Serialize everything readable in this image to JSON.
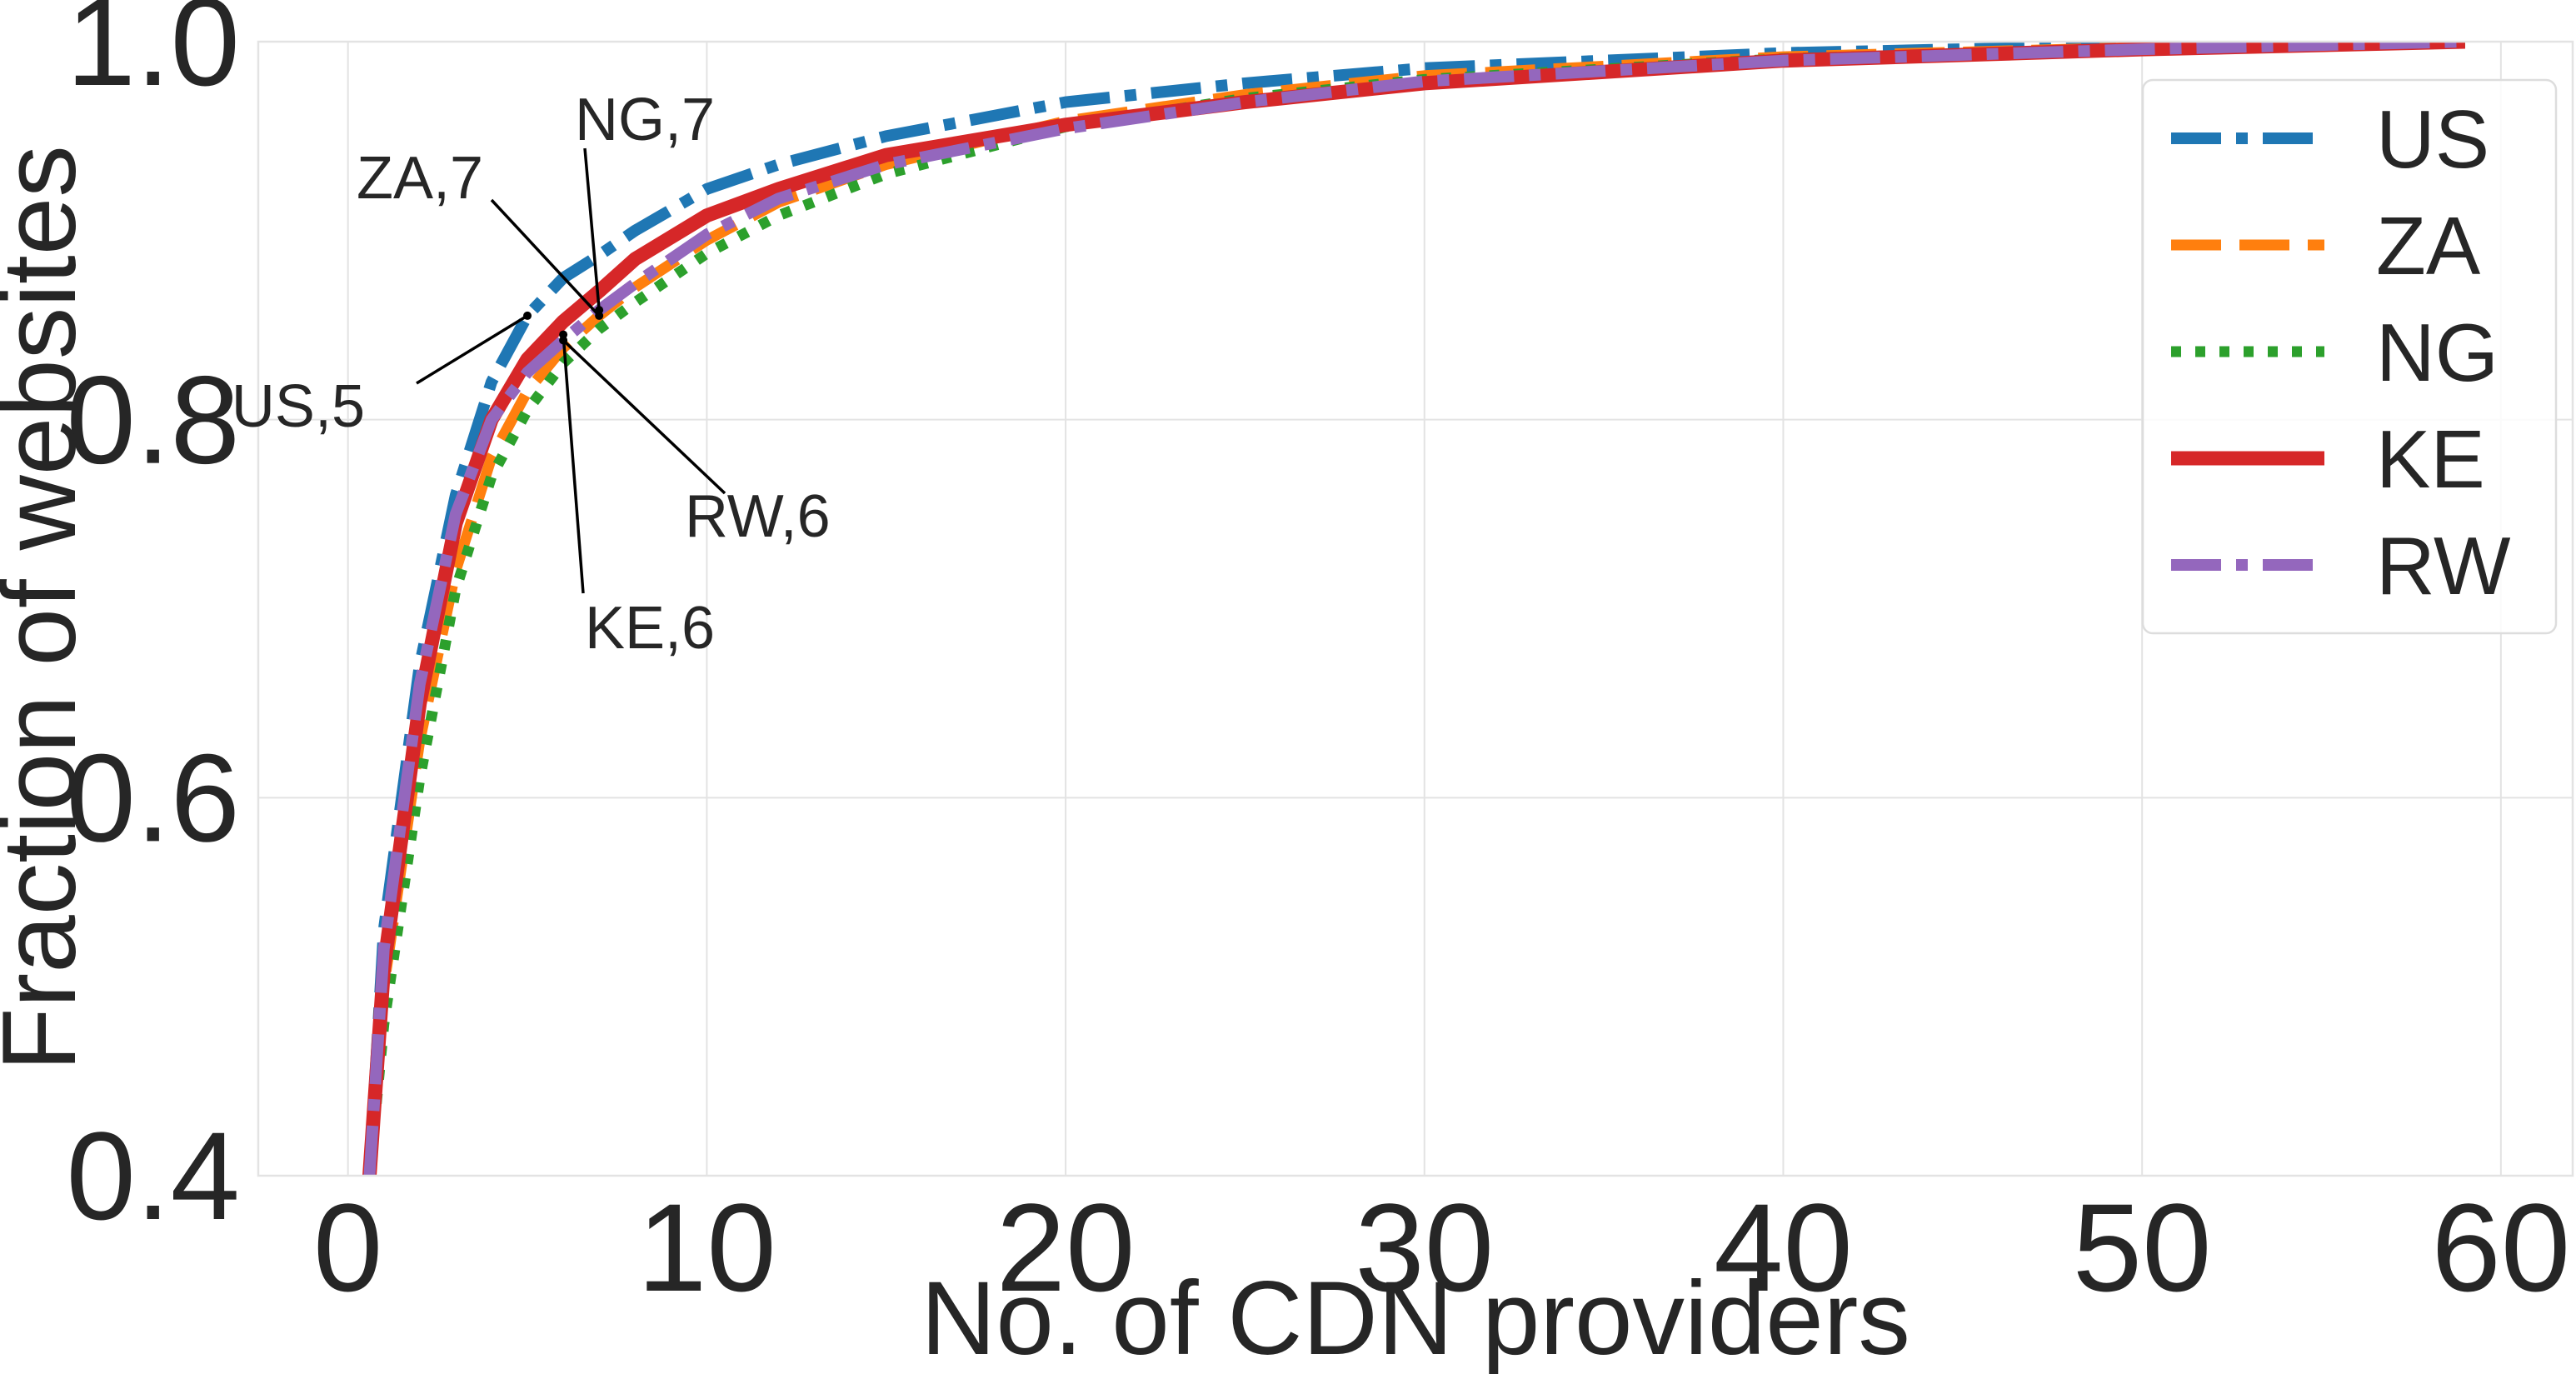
{
  "chart_data": {
    "type": "line",
    "title": "",
    "xlabel": "No. of CDN providers",
    "ylabel": "Fraction of websites",
    "xlim": [
      -2.5,
      62
    ],
    "ylim": [
      0.4,
      1.0
    ],
    "x_ticks": [
      0,
      10,
      20,
      30,
      40,
      50,
      60
    ],
    "y_ticks": [
      0.4,
      0.6,
      0.8,
      1.0
    ],
    "x_tick_labels": [
      "0",
      "10",
      "20",
      "30",
      "40",
      "50",
      "60"
    ],
    "y_tick_labels": [
      "0.4",
      "0.6",
      "0.8",
      "1.0"
    ],
    "grid": true,
    "legend_position": "top-right",
    "series": [
      {
        "name": "US",
        "color": "#1f77b4",
        "linestyle": "dashdot",
        "points": [
          [
            0.6,
            0.4
          ],
          [
            1,
            0.53
          ],
          [
            2,
            0.67
          ],
          [
            3,
            0.76
          ],
          [
            4,
            0.82
          ],
          [
            5,
            0.855
          ],
          [
            6,
            0.875
          ],
          [
            7,
            0.887
          ],
          [
            8,
            0.9
          ],
          [
            10,
            0.922
          ],
          [
            12,
            0.935
          ],
          [
            15,
            0.95
          ],
          [
            20,
            0.968
          ],
          [
            25,
            0.978
          ],
          [
            30,
            0.986
          ],
          [
            40,
            0.994
          ],
          [
            50,
            0.998
          ],
          [
            59,
            1.0
          ]
        ]
      },
      {
        "name": "ZA",
        "color": "#ff7f0e",
        "linestyle": "dashed",
        "points": [
          [
            0.6,
            0.4
          ],
          [
            1,
            0.5
          ],
          [
            2,
            0.63
          ],
          [
            3,
            0.72
          ],
          [
            4,
            0.78
          ],
          [
            5,
            0.815
          ],
          [
            6,
            0.838
          ],
          [
            7,
            0.855
          ],
          [
            8,
            0.87
          ],
          [
            10,
            0.895
          ],
          [
            12,
            0.915
          ],
          [
            15,
            0.935
          ],
          [
            20,
            0.958
          ],
          [
            25,
            0.972
          ],
          [
            30,
            0.982
          ],
          [
            40,
            0.992
          ],
          [
            50,
            0.997
          ],
          [
            59,
            1.0
          ]
        ]
      },
      {
        "name": "NG",
        "color": "#2ca02c",
        "linestyle": "dotted",
        "points": [
          [
            0.6,
            0.4
          ],
          [
            1,
            0.48
          ],
          [
            2,
            0.61
          ],
          [
            3,
            0.71
          ],
          [
            4,
            0.77
          ],
          [
            5,
            0.805
          ],
          [
            6,
            0.83
          ],
          [
            7,
            0.848
          ],
          [
            8,
            0.862
          ],
          [
            10,
            0.888
          ],
          [
            12,
            0.908
          ],
          [
            15,
            0.93
          ],
          [
            20,
            0.955
          ],
          [
            25,
            0.97
          ],
          [
            30,
            0.98
          ],
          [
            40,
            0.991
          ],
          [
            50,
            0.996
          ],
          [
            59,
            1.0
          ]
        ]
      },
      {
        "name": "KE",
        "color": "#d62728",
        "linestyle": "solid",
        "points": [
          [
            0.6,
            0.4
          ],
          [
            1,
            0.51
          ],
          [
            2,
            0.65
          ],
          [
            3,
            0.745
          ],
          [
            4,
            0.8
          ],
          [
            5,
            0.832
          ],
          [
            6,
            0.852
          ],
          [
            7,
            0.868
          ],
          [
            8,
            0.885
          ],
          [
            10,
            0.908
          ],
          [
            12,
            0.922
          ],
          [
            15,
            0.94
          ],
          [
            20,
            0.956
          ],
          [
            25,
            0.968
          ],
          [
            30,
            0.978
          ],
          [
            40,
            0.99
          ],
          [
            50,
            0.996
          ],
          [
            59,
            1.0
          ]
        ]
      },
      {
        "name": "RW",
        "color": "#9467bd",
        "linestyle": "dashdot",
        "points": [
          [
            0.6,
            0.4
          ],
          [
            1,
            0.52
          ],
          [
            2,
            0.66
          ],
          [
            3,
            0.75
          ],
          [
            4,
            0.8
          ],
          [
            5,
            0.825
          ],
          [
            6,
            0.842
          ],
          [
            7,
            0.858
          ],
          [
            8,
            0.872
          ],
          [
            10,
            0.898
          ],
          [
            12,
            0.917
          ],
          [
            15,
            0.935
          ],
          [
            20,
            0.954
          ],
          [
            25,
            0.968
          ],
          [
            30,
            0.979
          ],
          [
            40,
            0.99
          ],
          [
            50,
            0.996
          ],
          [
            59,
            1.0
          ]
        ]
      }
    ],
    "annotations": [
      {
        "text": "US,5",
        "x": 5,
        "y": 0.855
      },
      {
        "text": "ZA,7",
        "x": 7,
        "y": 0.855
      },
      {
        "text": "NG,7",
        "x": 7,
        "y": 0.858
      },
      {
        "text": "RW,6",
        "x": 6,
        "y": 0.842
      },
      {
        "text": "KE,6",
        "x": 6,
        "y": 0.845
      }
    ]
  }
}
